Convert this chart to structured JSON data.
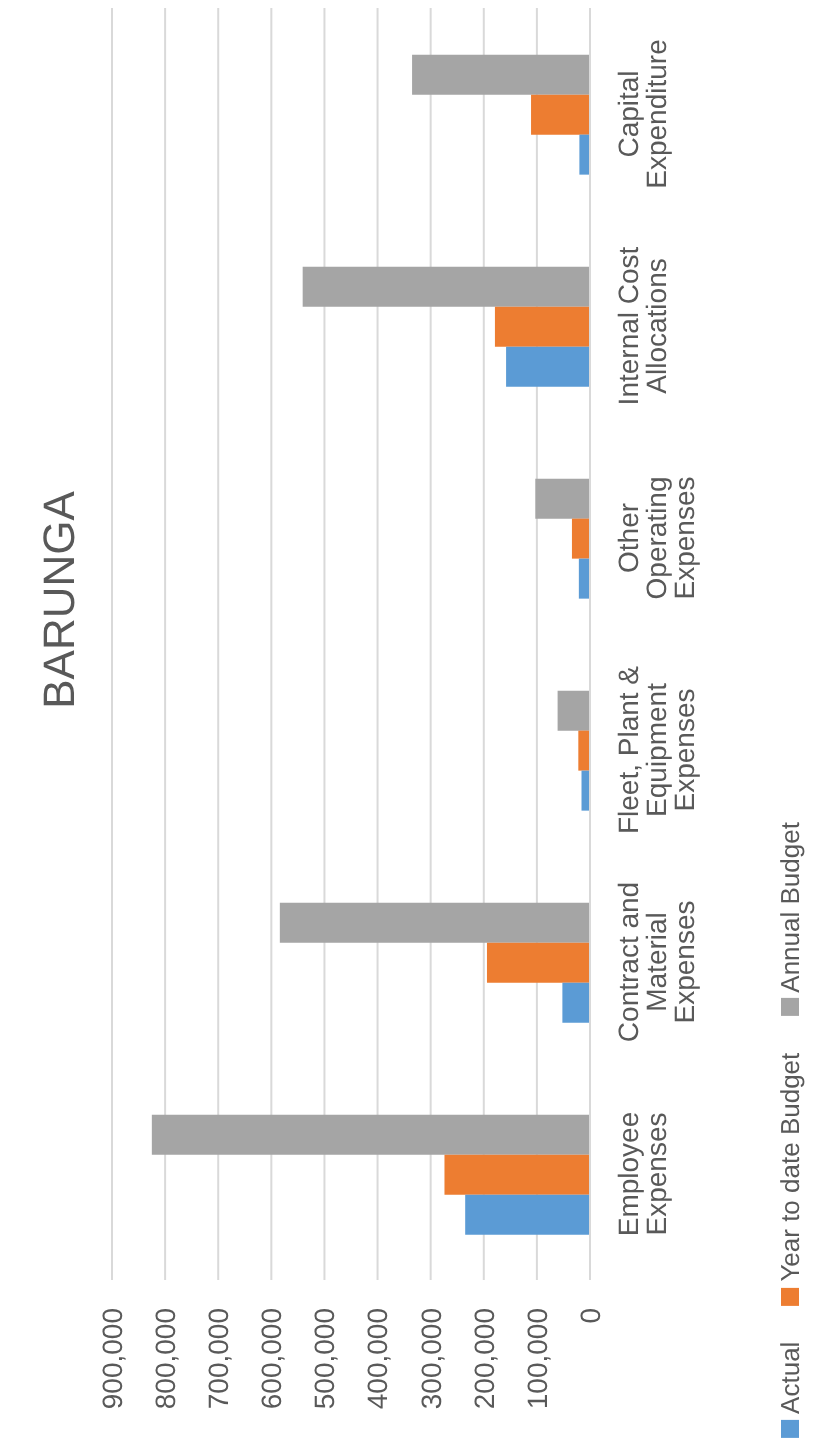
{
  "chart_data": {
    "type": "bar",
    "orientation": "horizontal",
    "title": "BARUNGA",
    "categories": [
      "Capital Expenditure",
      "Internal Cost Allocations",
      "Other Operating Expenses",
      "Fleet, Plant & Equipment Expenses",
      "Contract and Material Expenses",
      "Employee Expenses"
    ],
    "series": [
      {
        "name": "Actual",
        "color": "#5b9bd5",
        "values": [
          20000,
          158000,
          21000,
          16000,
          52000,
          235000
        ]
      },
      {
        "name": "Year to date Budget",
        "color": "#ed7d31",
        "values": [
          111000,
          179000,
          34000,
          22000,
          194000,
          274000
        ]
      },
      {
        "name": "Annual Budget",
        "color": "#a5a5a5",
        "values": [
          335000,
          541000,
          103000,
          61000,
          584000,
          825000
        ]
      }
    ],
    "xlim": [
      900000,
      0
    ],
    "xticks": [
      {
        "value": 0,
        "label": "0"
      },
      {
        "value": 100000,
        "label": "100,000"
      },
      {
        "value": 200000,
        "label": "200,000"
      },
      {
        "value": 300000,
        "label": "300,000"
      },
      {
        "value": 400000,
        "label": "400,000"
      },
      {
        "value": 500000,
        "label": "500,000"
      },
      {
        "value": 600000,
        "label": "600,000"
      },
      {
        "value": 700000,
        "label": "700,000"
      },
      {
        "value": 800000,
        "label": "800,000"
      },
      {
        "value": 900000,
        "label": "900,000"
      }
    ],
    "grid": "x",
    "legend": "right"
  }
}
